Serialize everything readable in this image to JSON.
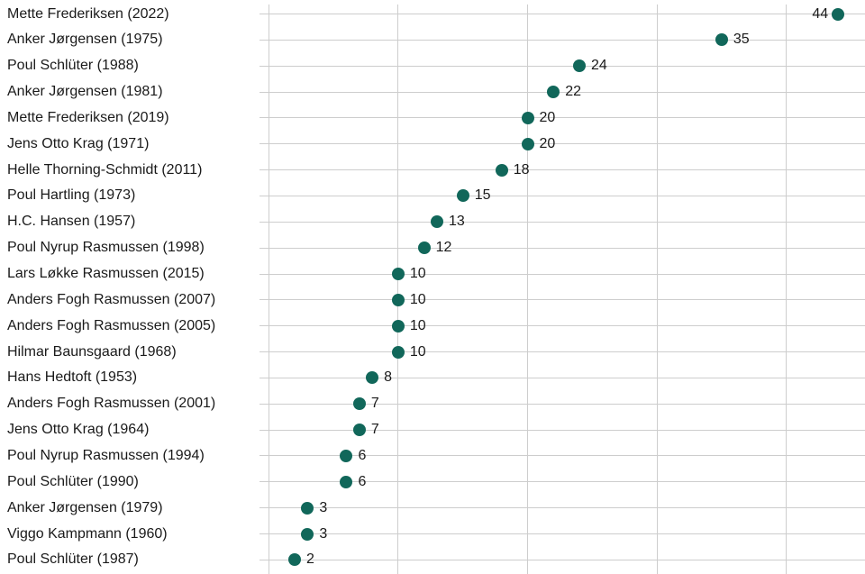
{
  "chart": {
    "colors": {
      "background": "#ffffff",
      "dot": "#11675a",
      "grid": "#cdcdcd",
      "text": "#1a1a1a"
    }
  },
  "chart_data": {
    "type": "scatter",
    "variant": "horizontal-dot-plot",
    "categories": [
      "Mette Frederiksen (2022)",
      "Anker Jørgensen (1975)",
      "Poul Schlüter (1988)",
      "Anker Jørgensen (1981)",
      "Mette Frederiksen (2019)",
      "Jens Otto Krag (1971)",
      "Helle Thorning-Schmidt (2011)",
      "Poul Hartling (1973)",
      "H.C. Hansen (1957)",
      "Poul Nyrup Rasmussen (1998)",
      "Lars Løkke Rasmussen (2015)",
      "Anders Fogh Rasmussen (2007)",
      "Anders Fogh Rasmussen (2005)",
      "Hilmar Baunsgaard (1968)",
      "Hans Hedtoft (1953)",
      "Anders Fogh Rasmussen (2001)",
      "Jens Otto Krag (1964)",
      "Poul Nyrup Rasmussen (1994)",
      "Poul Schlüter (1990)",
      "Anker Jørgensen (1979)",
      "Viggo Kampmann (1960)",
      "Poul Schlüter (1987)"
    ],
    "values": [
      44,
      35,
      24,
      22,
      20,
      20,
      18,
      15,
      13,
      12,
      10,
      10,
      10,
      10,
      8,
      7,
      7,
      6,
      6,
      3,
      3,
      2
    ],
    "value_labels_shown": true,
    "value_label_side_default": "right",
    "value_label_side_overrides": {
      "0": "left"
    },
    "x_gridlines": [
      0,
      10,
      20,
      30,
      40
    ],
    "xlim": [
      0,
      46
    ],
    "grid": true,
    "legend": "none"
  }
}
